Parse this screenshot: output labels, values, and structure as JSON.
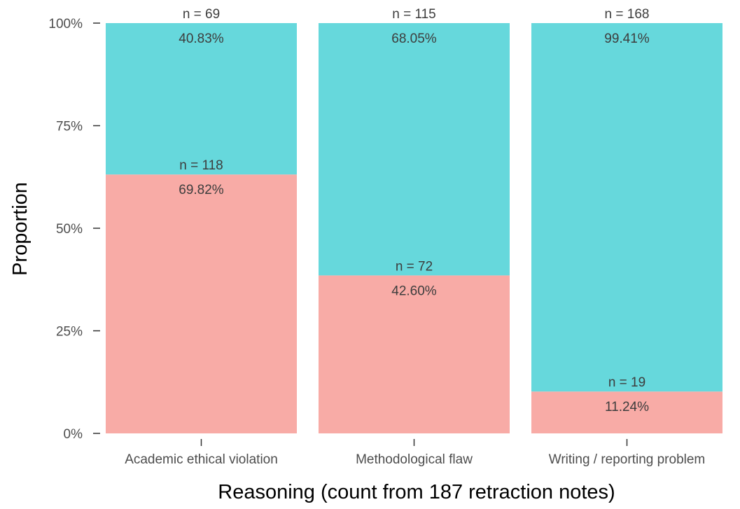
{
  "chart_data": {
    "type": "bar",
    "stacked": true,
    "xlabel": "Reasoning (count from 187 retraction notes)",
    "ylabel": "Proportion",
    "ylim": [
      0,
      100
    ],
    "yticks": [
      {
        "value": 0,
        "label": "0%"
      },
      {
        "value": 25,
        "label": "25%"
      },
      {
        "value": 50,
        "label": "50%"
      },
      {
        "value": 75,
        "label": "75%"
      },
      {
        "value": 100,
        "label": "100%"
      }
    ],
    "categories": [
      "Academic ethical violation",
      "Methodological flaw",
      "Writing / reporting problem"
    ],
    "series": [
      {
        "color": "#f8aba6",
        "values": [
          63.1,
          38.5,
          10.2
        ],
        "n_labels": [
          "n =  118",
          "n =  72",
          "n =  19"
        ],
        "pct_labels": [
          "69.82%",
          "42.60%",
          "11.24%"
        ]
      },
      {
        "color": "#66d8dc",
        "values": [
          36.9,
          61.5,
          89.8
        ],
        "n_labels": [
          "n =  69",
          "n =  115",
          "n =  168"
        ],
        "pct_labels": [
          "40.83%",
          "68.05%",
          "99.41%"
        ]
      }
    ],
    "grid": false,
    "legend": "none"
  }
}
